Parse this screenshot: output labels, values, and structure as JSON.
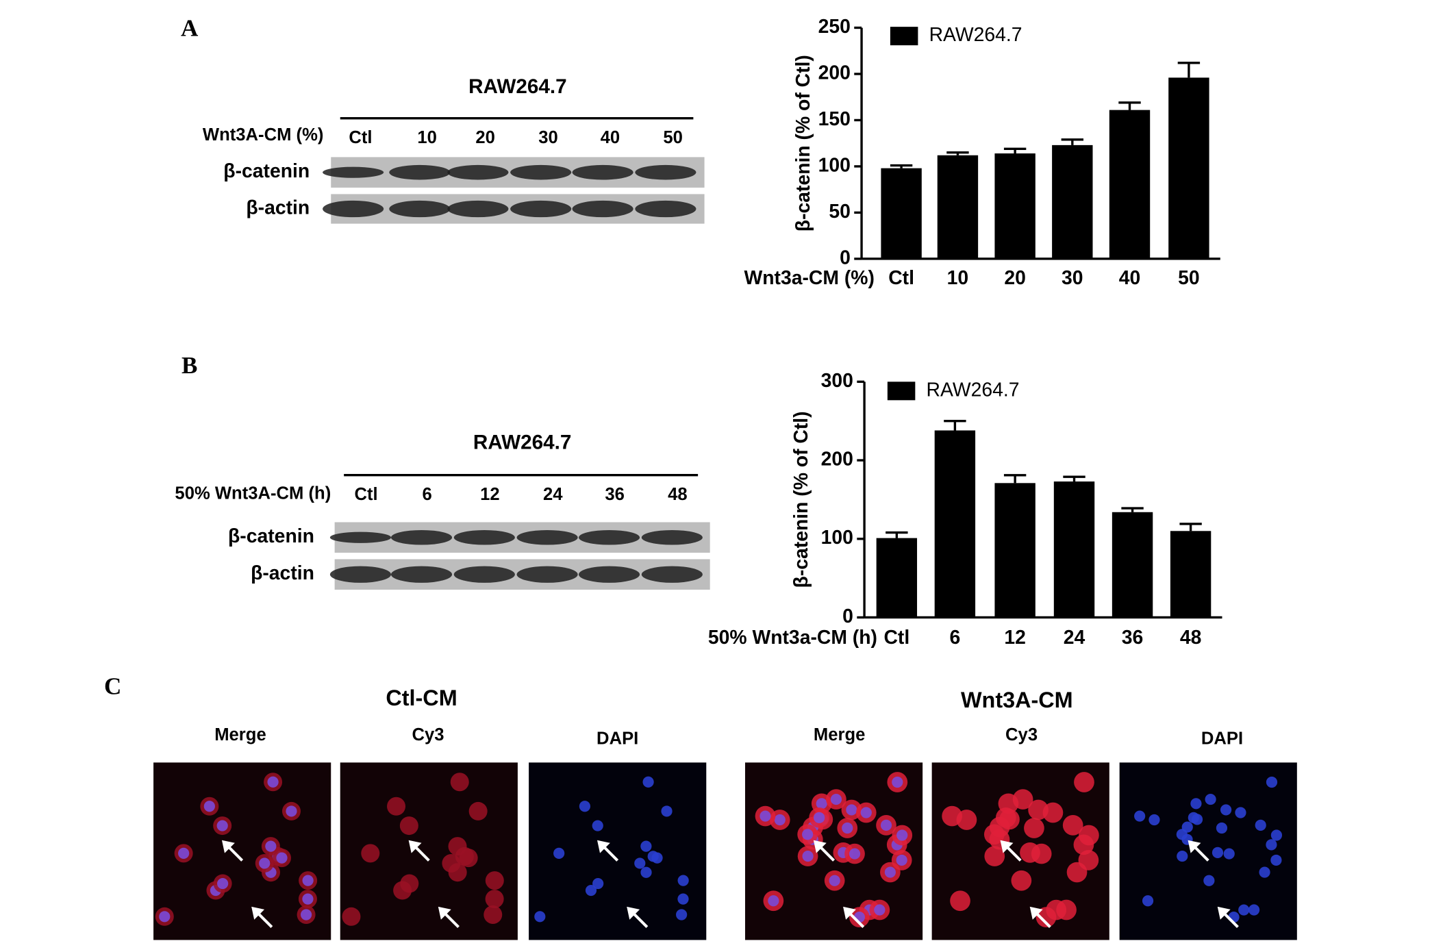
{
  "chart_data": [
    {
      "type": "bar",
      "x_label": "Wnt3a-CM (%)",
      "y_label": "β-catenin (% of Ctl)",
      "categories": [
        "Ctl",
        "10",
        "20",
        "30",
        "40",
        "50"
      ],
      "series": [
        {
          "name": "RAW264.7",
          "color": "#000000",
          "values": [
            98,
            112,
            114,
            123,
            161,
            196
          ],
          "errors": [
            3,
            3,
            5,
            6,
            8,
            16
          ]
        }
      ],
      "ylim": [
        0,
        250
      ],
      "yticks": [
        0,
        50,
        100,
        150,
        200,
        250
      ],
      "grid": false,
      "legend": "top-left"
    },
    {
      "type": "bar",
      "x_label": "50% Wnt3a-CM (h)",
      "y_label": "β-catenin (% of Ctl)",
      "categories": [
        "Ctl",
        "6",
        "12",
        "24",
        "36",
        "48"
      ],
      "series": [
        {
          "name": "RAW264.7",
          "color": "#000000",
          "values": [
            101,
            238,
            171,
            173,
            134,
            110
          ],
          "errors": [
            7,
            12,
            10,
            6,
            5,
            9
          ]
        }
      ],
      "ylim": [
        0,
        300
      ],
      "yticks": [
        0,
        100,
        200,
        300
      ],
      "grid": false,
      "legend": "top-left"
    }
  ],
  "panel_labels": [
    "A",
    "B",
    "C"
  ],
  "blots": [
    {
      "title": "RAW264.7",
      "condition": "Wnt3A-CM (%)",
      "lanes": [
        "Ctl",
        "10",
        "20",
        "30",
        "40",
        "50"
      ],
      "bands": [
        "β-catenin",
        "β-actin"
      ]
    },
    {
      "title": "RAW264.7",
      "condition": "50% Wnt3A-CM (h)",
      "lanes": [
        "Ctl",
        "6",
        "12",
        "24",
        "36",
        "48"
      ],
      "bands": [
        "β-catenin",
        "β-actin"
      ]
    }
  ],
  "imaging": [
    {
      "title": "Ctl-CM",
      "channels": [
        "Merge",
        "Cy3",
        "DAPI"
      ]
    },
    {
      "title": "Wnt3A-CM",
      "channels": [
        "Merge",
        "Cy3",
        "DAPI"
      ]
    }
  ]
}
